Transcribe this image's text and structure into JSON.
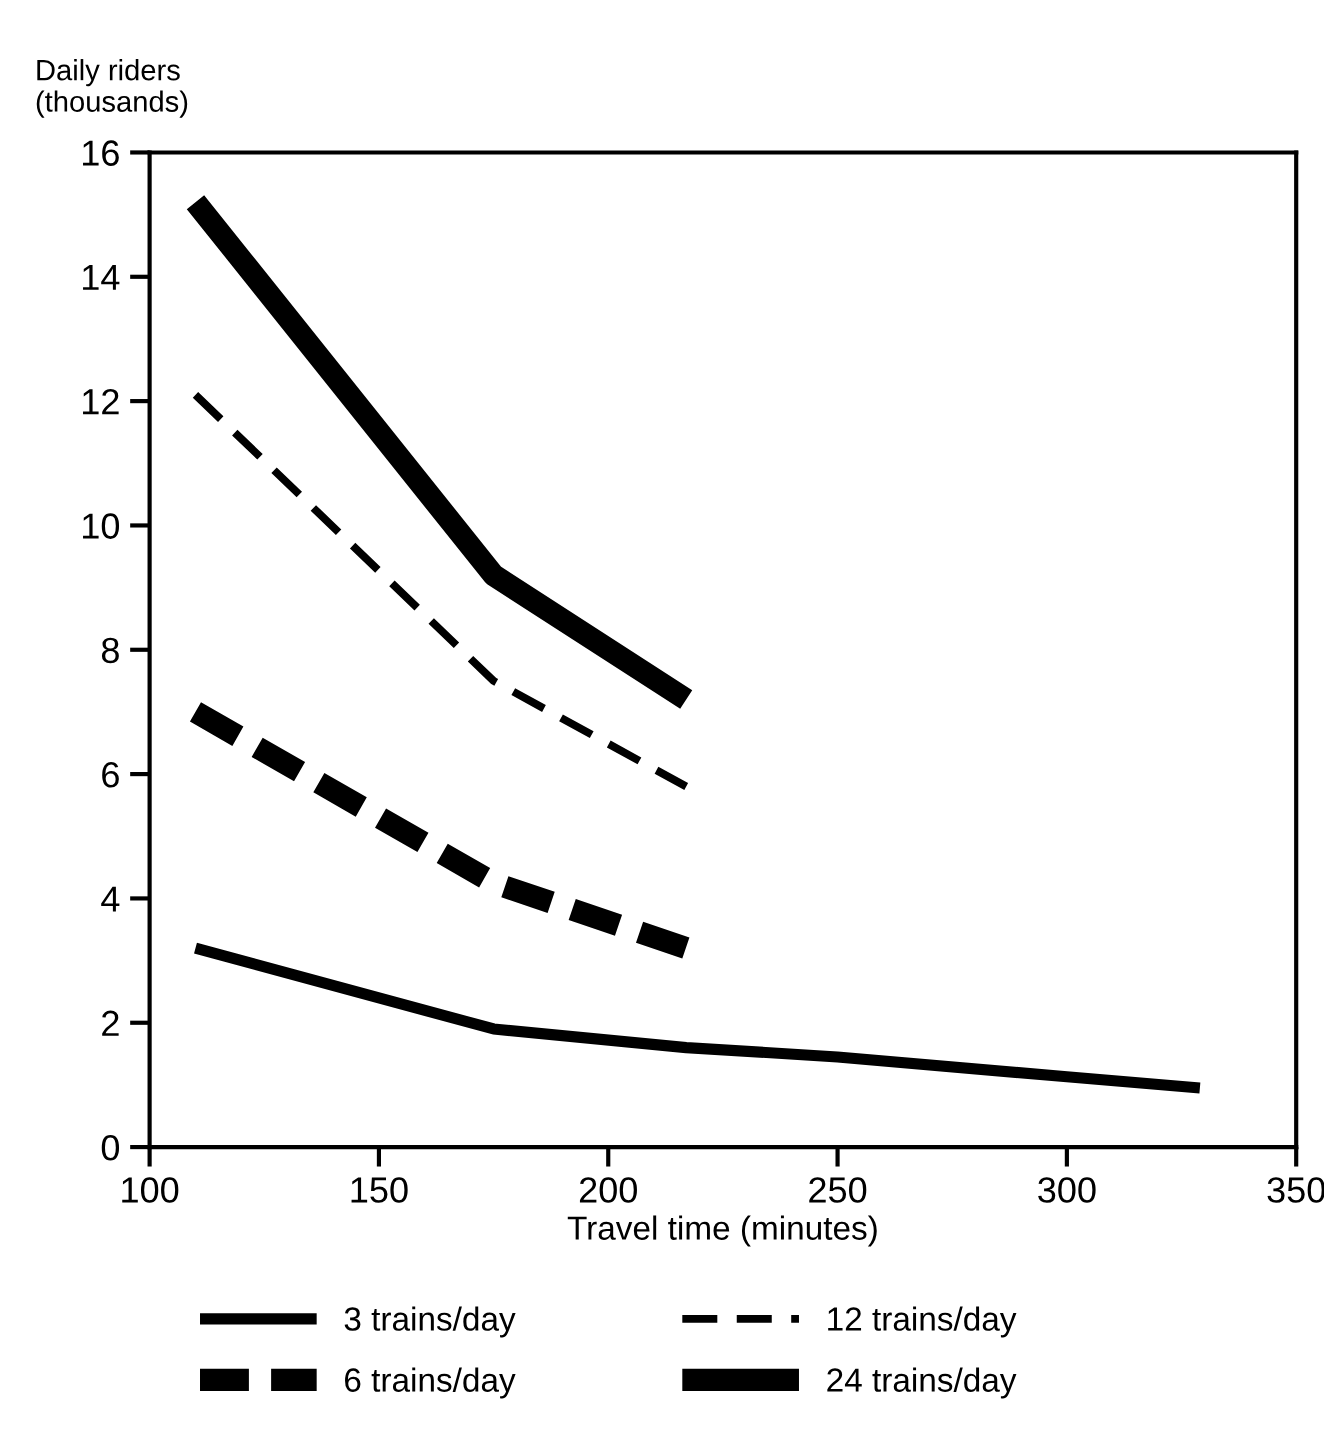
{
  "chart_data": {
    "type": "line",
    "xlabel": "Travel time (minutes)",
    "ylabel": "Daily riders\n(thousands)",
    "xlim": [
      100,
      350
    ],
    "xticks": [
      100,
      150,
      200,
      250,
      300,
      350
    ],
    "ylim": [
      0,
      16
    ],
    "yticks": [
      0,
      2,
      4,
      6,
      8,
      10,
      12,
      14,
      16
    ],
    "grid": false,
    "legend": "bottom",
    "marker": "none",
    "series": [
      {
        "name": "3 trains/day",
        "color": "#000000",
        "line_style": "solid",
        "x": [
          110,
          175,
          217,
          250,
          300,
          329
        ],
        "values": [
          3.2,
          1.9,
          1.6,
          1.45,
          1.13,
          0.95
        ]
      },
      {
        "name": "6 trains/day",
        "color": "#000000",
        "line_style": "dashed",
        "x": [
          110,
          175,
          217
        ],
        "values": [
          7.0,
          4.25,
          3.2
        ]
      },
      {
        "name": "12 trains/day",
        "color": "#000000",
        "line_style": "dashed",
        "x": [
          110,
          175,
          217
        ],
        "values": [
          12.1,
          7.5,
          5.8
        ]
      },
      {
        "name": "24 trains/day",
        "color": "#000000",
        "line_style": "solid",
        "x": [
          110,
          175,
          217
        ],
        "values": [
          15.2,
          9.2,
          7.2
        ]
      }
    ]
  }
}
